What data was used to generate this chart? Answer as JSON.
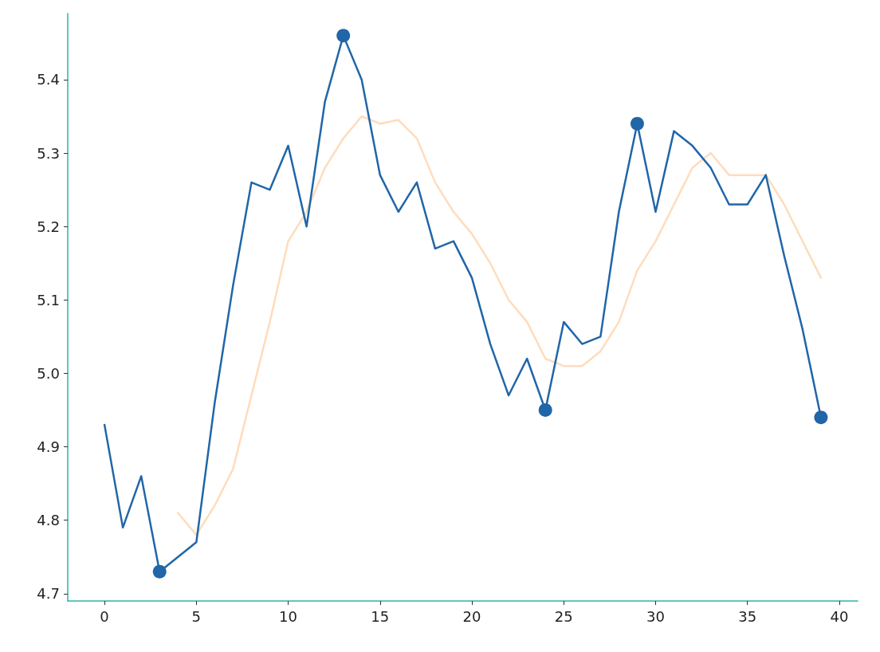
{
  "chart_data": {
    "type": "line",
    "x": [
      0,
      1,
      2,
      3,
      4,
      5,
      6,
      7,
      8,
      9,
      10,
      11,
      12,
      13,
      14,
      15,
      16,
      17,
      18,
      19,
      20,
      21,
      22,
      23,
      24,
      25,
      26,
      27,
      28,
      29,
      30,
      31,
      32,
      33,
      34,
      35,
      36,
      37,
      38,
      39
    ],
    "series": [
      {
        "color": "#ffdcbc",
        "x": [
          4,
          5,
          6,
          7,
          8,
          9,
          10,
          11,
          12,
          13,
          14,
          15,
          16,
          17,
          18,
          19,
          20,
          21,
          22,
          23,
          24,
          25,
          26,
          27,
          28,
          29,
          30,
          31,
          32,
          33,
          34,
          35,
          36,
          37,
          38,
          39
        ],
        "values": [
          4.81,
          4.78,
          4.82,
          4.87,
          4.97,
          5.07,
          5.18,
          5.22,
          5.28,
          5.32,
          5.35,
          5.34,
          5.345,
          5.32,
          5.26,
          5.22,
          5.19,
          5.15,
          5.1,
          5.07,
          5.02,
          5.01,
          5.01,
          5.03,
          5.07,
          5.14,
          5.18,
          5.23,
          5.28,
          5.3,
          5.27,
          5.27,
          5.27,
          5.23,
          5.18,
          5.13
        ]
      },
      {
        "color": "#2066a8",
        "values": [
          4.93,
          4.79,
          4.86,
          4.73,
          4.75,
          4.77,
          4.96,
          5.12,
          5.26,
          5.25,
          5.31,
          5.2,
          5.37,
          5.46,
          5.4,
          5.27,
          5.22,
          5.26,
          5.17,
          5.18,
          5.13,
          5.04,
          4.97,
          5.02,
          4.95,
          5.07,
          5.04,
          5.05,
          5.22,
          5.34,
          5.22,
          5.33,
          5.31,
          5.28,
          5.23,
          5.23,
          5.27,
          5.16,
          5.06,
          4.94
        ]
      },
      {
        "type": "scatter",
        "marker": "circle",
        "color": "#2066a8",
        "x": [
          3,
          13,
          24,
          29,
          39
        ],
        "values": [
          4.73,
          5.46,
          4.95,
          5.34,
          4.94
        ]
      }
    ],
    "marker": "none",
    "line_style": "solid",
    "grid": false,
    "xlim": [
      -2,
      41
    ],
    "xticks": [
      0,
      5,
      10,
      15,
      20,
      25,
      30,
      35,
      40
    ],
    "ylim": [
      4.69,
      5.49
    ],
    "yticks": [
      4.7,
      4.8,
      4.9,
      {
        "value": 5,
        "label": "5.0"
      },
      5.1,
      5.2,
      5.3,
      5.4
    ]
  }
}
